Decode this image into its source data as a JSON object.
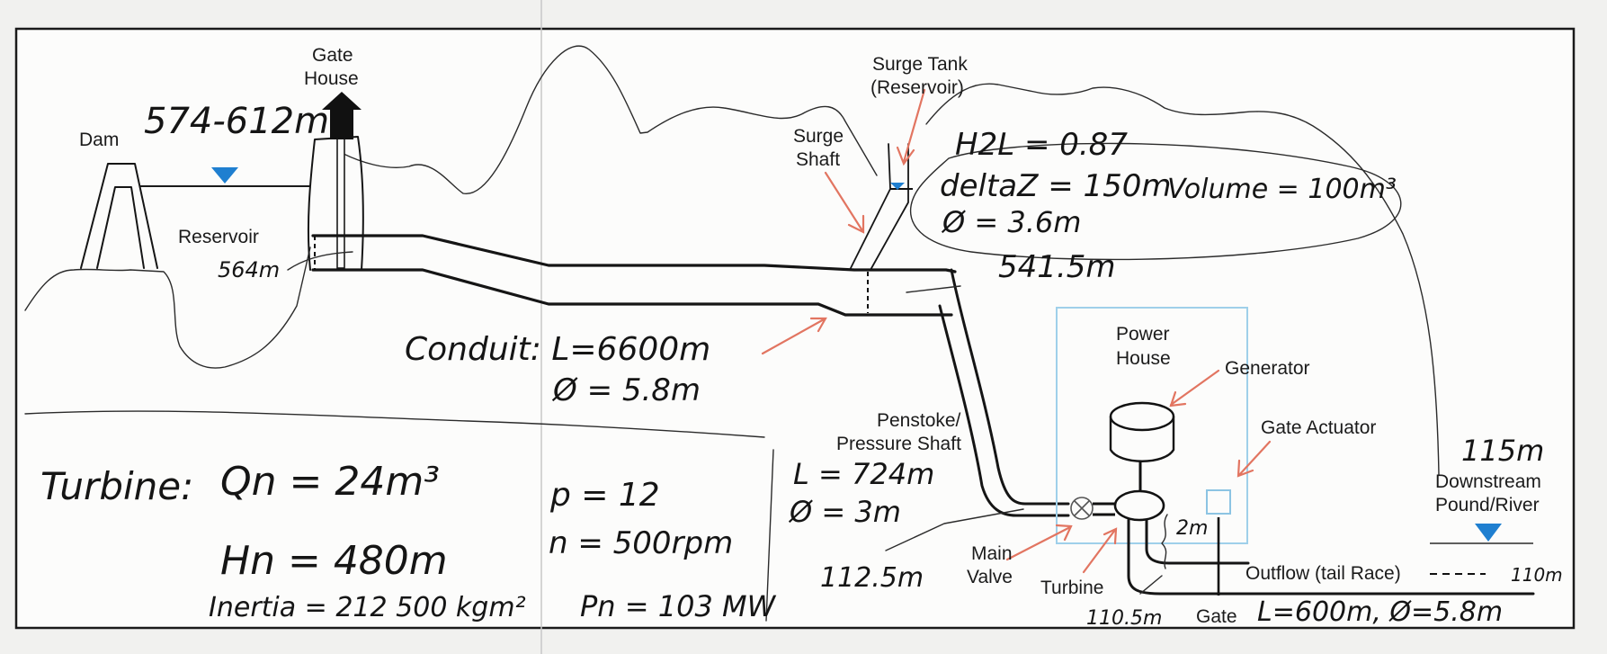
{
  "labels": {
    "dam": "Dam",
    "gate_house_1": "Gate",
    "gate_house_2": "House",
    "reservoir": "Reservoir",
    "surge_tank_1": "Surge Tank",
    "surge_tank_2": "(Reservoir)",
    "surge_shaft_1": "Surge",
    "surge_shaft_2": "Shaft",
    "power_house_1": "Power",
    "power_house_2": "House",
    "generator": "Generator",
    "gate_actuator": "Gate Actuator",
    "penstoke_1": "Penstoke/",
    "penstoke_2": "Pressure Shaft",
    "main_valve_1": "Main",
    "main_valve_2": "Valve",
    "turbine": "Turbine",
    "gate": "Gate",
    "downstream_1": "Downstream",
    "downstream_2": "Pound/River",
    "outflow": "Outflow (tail Race)"
  },
  "notes": {
    "reservoir_level": "574-612m",
    "reservoir_bottom": "564m",
    "surge_h2l": "H2L = 0.87",
    "surge_deltaz": "deltaZ = 150m",
    "surge_diameter": "Ø = 3.6m",
    "surge_volume": "Volume = 100m³",
    "conduit_elev": "541.5m",
    "conduit_length": "Conduit: L=6600m",
    "conduit_diameter": "Ø = 5.8m",
    "penstoke_length": "L = 724m",
    "penstoke_diameter": "Ø = 3m",
    "valve_elev": "112.5m",
    "turbine_elev": "110.5m",
    "turbine_gap": "2m",
    "downstream_elev": "115m",
    "tailrace_elev": "110m",
    "tailrace_dims": "L=600m, Ø=5.8m",
    "turbine_title": "Turbine:",
    "turbine_qn": "Qn = 24m³",
    "turbine_hn": "Hn = 480m",
    "turbine_inertia": "Inertia = 212 500 kgm²",
    "turbine_p": "p = 12",
    "turbine_n": "n = 500rpm",
    "turbine_pn": "Pn = 103 MW"
  },
  "colors": {
    "water_marker": "#1f7fd0",
    "annotation_arrow": "#e27561",
    "power_house_box": "#9fd0ea",
    "ink": "#151515"
  }
}
